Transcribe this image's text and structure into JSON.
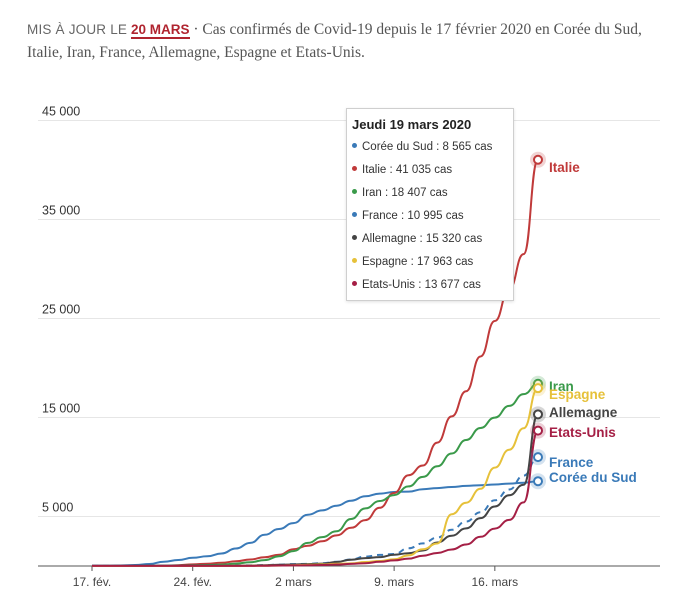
{
  "header": {
    "update_prefix": "MIS À JOUR LE",
    "update_date": "20 MARS",
    "description": "· Cas confirmés de Covid-19 depuis le 17 février 2020 en Corée du Sud, Italie, Iran, France, Allemagne, Espagne et Etats-Unis."
  },
  "tooltip": {
    "title": "Jeudi 19 mars 2020",
    "rows": [
      {
        "text": "Corée du Sud : 8 565 cas",
        "color": "#3a7ab8"
      },
      {
        "text": "Italie : 41 035 cas",
        "color": "#c03a3a"
      },
      {
        "text": "Iran : 18 407 cas",
        "color": "#3a9a4a"
      },
      {
        "text": "France : 10 995 cas",
        "color": "#3a7ab8"
      },
      {
        "text": "Allemagne : 15 320 cas",
        "color": "#444444"
      },
      {
        "text": "Espagne : 17 963 cas",
        "color": "#e6c13a"
      },
      {
        "text": "Etats-Unis : 13 677 cas",
        "color": "#a51f45"
      }
    ]
  },
  "chart_data": {
    "type": "line",
    "x_unit": "jours depuis le 17 fév.",
    "xlim": [
      0,
      34
    ],
    "ylim": [
      0,
      45000
    ],
    "y_ticks": [
      5000,
      15000,
      25000,
      35000,
      45000
    ],
    "y_tick_labels": [
      "5 000",
      "15 000",
      "25 000",
      "35 000",
      "45 000"
    ],
    "x_ticks": [
      0,
      7,
      14,
      21,
      28
    ],
    "x_tick_labels": [
      "17. fév.",
      "24. fév.",
      "2 mars",
      "9. mars",
      "16. mars"
    ],
    "grid": true,
    "series": [
      {
        "name": "Corée du Sud",
        "label": "Corée du Sud",
        "color": "#3a7ab8",
        "dashed": false,
        "x": [
          0,
          1,
          2,
          3,
          4,
          5,
          6,
          7,
          8,
          9,
          10,
          11,
          12,
          13,
          14,
          15,
          16,
          17,
          18,
          19,
          20,
          21,
          22,
          23,
          24,
          25,
          26,
          27,
          28,
          29,
          30,
          31
        ],
        "y": [
          30,
          31,
          51,
          104,
          204,
          433,
          602,
          833,
          977,
          1261,
          1766,
          2337,
          3150,
          3736,
          4335,
          5186,
          5621,
          6088,
          6593,
          7041,
          7313,
          7478,
          7513,
          7755,
          7869,
          7979,
          8086,
          8162,
          8236,
          8320,
          8413,
          8565
        ]
      },
      {
        "name": "Italie",
        "label": "Italie",
        "color": "#c03a3a",
        "dashed": false,
        "x": [
          0,
          4,
          5,
          6,
          7,
          8,
          9,
          10,
          11,
          12,
          13,
          14,
          15,
          16,
          17,
          18,
          19,
          20,
          21,
          22,
          23,
          24,
          25,
          26,
          27,
          28,
          29,
          30,
          31
        ],
        "y": [
          3,
          3,
          20,
          79,
          157,
          229,
          323,
          470,
          655,
          889,
          1128,
          1694,
          2036,
          2502,
          3089,
          3858,
          4636,
          5883,
          7375,
          9172,
          10149,
          12462,
          15113,
          17660,
          21157,
          24747,
          27980,
          31506,
          41035
        ]
      },
      {
        "name": "Iran",
        "label": "Iran",
        "color": "#3a9a4a",
        "dashed": false,
        "x": [
          0,
          2,
          3,
          4,
          5,
          6,
          7,
          8,
          9,
          10,
          11,
          12,
          13,
          14,
          15,
          16,
          17,
          18,
          19,
          20,
          21,
          22,
          23,
          24,
          25,
          26,
          27,
          28,
          29,
          30,
          31
        ],
        "y": [
          0,
          2,
          5,
          18,
          28,
          43,
          61,
          95,
          139,
          245,
          388,
          593,
          978,
          1501,
          2336,
          2922,
          3513,
          4747,
          5823,
          6566,
          7161,
          8042,
          9000,
          10075,
          11364,
          12729,
          13938,
          14991,
          16169,
          17361,
          18407
        ]
      },
      {
        "name": "France",
        "label": "France",
        "color": "#3a7ab8",
        "dashed": true,
        "x": [
          0,
          7,
          8,
          9,
          10,
          11,
          12,
          13,
          14,
          15,
          16,
          17,
          18,
          19,
          20,
          21,
          22,
          23,
          24,
          25,
          26,
          27,
          28,
          29,
          30,
          31
        ],
        "y": [
          12,
          12,
          14,
          18,
          38,
          57,
          100,
          130,
          191,
          212,
          285,
          423,
          653,
          949,
          1126,
          1209,
          1784,
          2281,
          2876,
          3661,
          4499,
          5423,
          6633,
          7730,
          9134,
          10995
        ]
      },
      {
        "name": "Allemagne",
        "label": "Allemagne",
        "color": "#444444",
        "dashed": false,
        "x": [
          0,
          7,
          8,
          9,
          10,
          11,
          12,
          13,
          14,
          15,
          16,
          17,
          18,
          19,
          20,
          21,
          22,
          23,
          24,
          25,
          26,
          27,
          28,
          29,
          30,
          31
        ],
        "y": [
          16,
          16,
          18,
          21,
          26,
          53,
          66,
          117,
          150,
          188,
          240,
          400,
          639,
          795,
          902,
          1139,
          1296,
          1567,
          2369,
          3062,
          3795,
          4838,
          6012,
          7156,
          8198,
          15320
        ]
      },
      {
        "name": "Espagne",
        "label": "Espagne",
        "color": "#e6c13a",
        "dashed": false,
        "x": [
          0,
          8,
          9,
          10,
          11,
          12,
          13,
          14,
          15,
          16,
          17,
          18,
          19,
          20,
          21,
          22,
          23,
          24,
          25,
          26,
          27,
          28,
          29,
          30,
          31
        ],
        "y": [
          2,
          2,
          7,
          12,
          25,
          32,
          45,
          84,
          120,
          165,
          222,
          259,
          400,
          500,
          673,
          1073,
          1695,
          2277,
          5232,
          6391,
          7798,
          9942,
          11748,
          13910,
          17963
        ]
      },
      {
        "name": "Etats-Unis",
        "label": "Etats-Unis",
        "color": "#a51f45",
        "dashed": false,
        "x": [
          0,
          11,
          12,
          13,
          14,
          15,
          16,
          17,
          18,
          19,
          20,
          21,
          22,
          23,
          24,
          25,
          26,
          27,
          28,
          29,
          30,
          31
        ],
        "y": [
          15,
          15,
          35,
          53,
          59,
          68,
          99,
          148,
          213,
          279,
          423,
          566,
          749,
          1037,
          1313,
          1663,
          2174,
          2951,
          3774,
          4661,
          6427,
          13677
        ]
      }
    ]
  }
}
